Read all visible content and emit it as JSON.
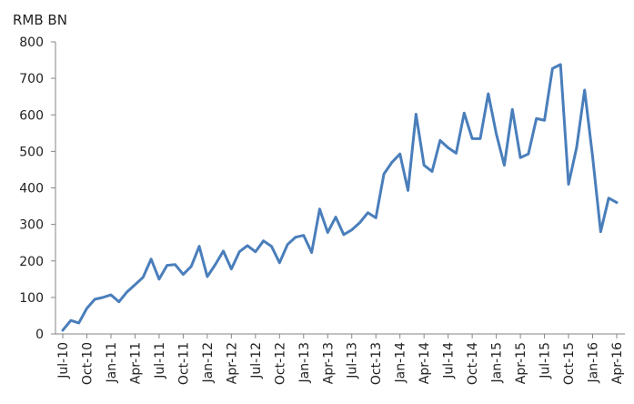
{
  "chart_data": {
    "type": "line",
    "title": "",
    "ylabel": "RMB BN",
    "xlabel": "",
    "ylim": [
      0,
      800
    ],
    "yticks": [
      0,
      100,
      200,
      300,
      400,
      500,
      600,
      700,
      800
    ],
    "grid": false,
    "legend": "none",
    "tick_labels_x": [
      "Jul-10",
      "Oct-10",
      "Jan-11",
      "Apr-11",
      "Jul-11",
      "Oct-11",
      "Jan-12",
      "Apr-12",
      "Jul-12",
      "Oct-12",
      "Jan-13",
      "Apr-13",
      "Jul-13",
      "Oct-13",
      "Jan-14",
      "Apr-14",
      "Jul-14",
      "Oct-14",
      "Jan-15",
      "Apr-15",
      "Jul-15",
      "Oct-15",
      "Jan-16",
      "Apr-16"
    ],
    "series": [
      {
        "name": "RMB BN",
        "color": "#4a7ebb",
        "categories": [
          "Jul-10",
          "Aug-10",
          "Sep-10",
          "Oct-10",
          "Nov-10",
          "Dec-10",
          "Jan-11",
          "Feb-11",
          "Mar-11",
          "Apr-11",
          "May-11",
          "Jun-11",
          "Jul-11",
          "Aug-11",
          "Sep-11",
          "Oct-11",
          "Nov-11",
          "Dec-11",
          "Jan-12",
          "Feb-12",
          "Mar-12",
          "Apr-12",
          "May-12",
          "Jun-12",
          "Jul-12",
          "Aug-12",
          "Sep-12",
          "Oct-12",
          "Nov-12",
          "Dec-12",
          "Jan-13",
          "Feb-13",
          "Mar-13",
          "Apr-13",
          "May-13",
          "Jun-13",
          "Jul-13",
          "Aug-13",
          "Sep-13",
          "Oct-13",
          "Nov-13",
          "Dec-13",
          "Jan-14",
          "Feb-14",
          "Mar-14",
          "Apr-14",
          "May-14",
          "Jun-14",
          "Jul-14",
          "Aug-14",
          "Sep-14",
          "Oct-14",
          "Nov-14",
          "Dec-14",
          "Jan-15",
          "Feb-15",
          "Mar-15",
          "Apr-15",
          "May-15",
          "Jun-15",
          "Jul-15",
          "Aug-15",
          "Sep-15",
          "Oct-15",
          "Nov-15",
          "Dec-15",
          "Jan-16",
          "Feb-16",
          "Mar-16",
          "Apr-16"
        ],
        "values": [
          10,
          37,
          30,
          70,
          95,
          100,
          107,
          88,
          115,
          135,
          155,
          205,
          150,
          188,
          190,
          163,
          185,
          240,
          157,
          190,
          227,
          178,
          225,
          242,
          225,
          255,
          240,
          195,
          245,
          265,
          270,
          223,
          342,
          278,
          320,
          272,
          285,
          305,
          332,
          318,
          438,
          470,
          493,
          393,
          602,
          462,
          445,
          530,
          510,
          495,
          605,
          535,
          535,
          658,
          548,
          462,
          615,
          483,
          493,
          590,
          585,
          727,
          738,
          410,
          510,
          668,
          485,
          280,
          372,
          360
        ]
      }
    ]
  }
}
